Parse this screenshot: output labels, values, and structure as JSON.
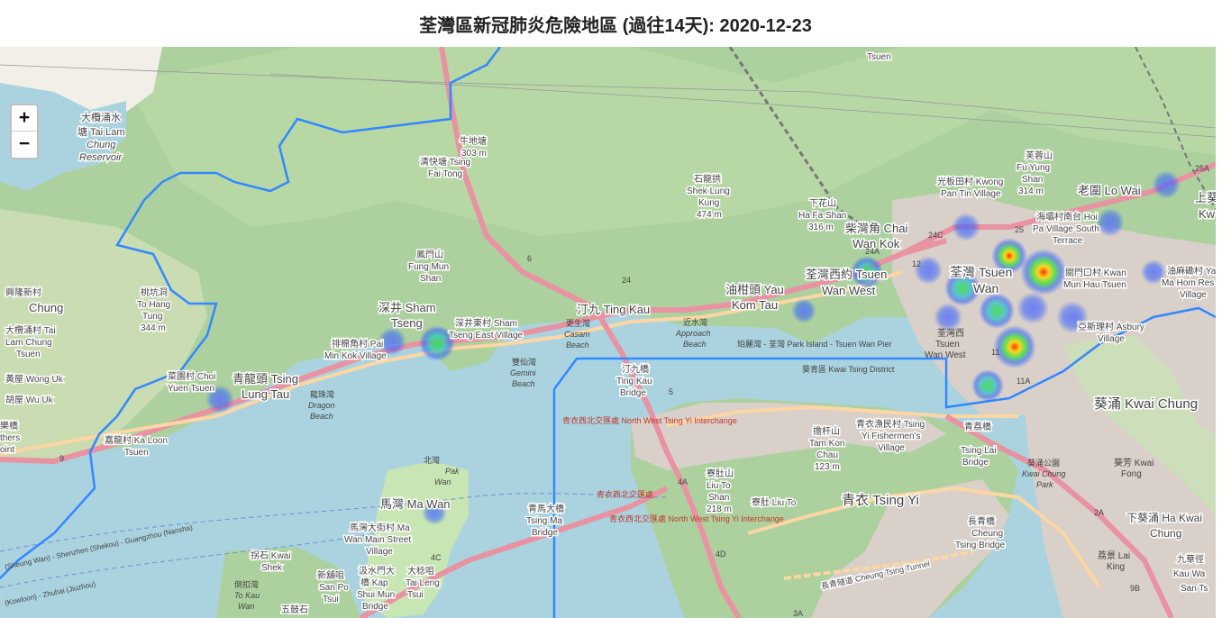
{
  "title": "荃灣區新冠肺炎危險地區 (過往14天): 2020-12-23",
  "zoom": {
    "in_label": "+",
    "out_label": "−"
  },
  "places": [
    {
      "id": "tai-lam-chung-reservoir",
      "l1": "大欖涌水",
      "l2": "塘 Tai Lam",
      "l3": "Chung",
      "l4": "Reservoir"
    },
    {
      "id": "ngau-tam-mei",
      "l1": "牛地塘",
      "l2": "303 m"
    },
    {
      "id": "tsing-fai-tong",
      "l1": "清快塘 Tsing",
      "l2": "Fai Tong"
    },
    {
      "id": "shek-lung-kung",
      "l1": "石龍拱",
      "l2": "Shek Lung",
      "l3": "Kung",
      "l4": "474 m"
    },
    {
      "id": "ha-fa-shan",
      "l1": "下花山",
      "l2": "Ha Fa Shan",
      "l3": "316 m"
    },
    {
      "id": "fung-mun-shan",
      "l1": "鳳門山",
      "l2": "Fung Mun",
      "l3": "Shan"
    },
    {
      "id": "to-hang-tung",
      "l1": "桃坑洞",
      "l2": "To Hang",
      "l3": "Tung",
      "l4": "344 m"
    },
    {
      "id": "tai-lam-chung-tsuen",
      "l1": "大欖涌村 Tai",
      "l2": "Lam Chung",
      "l3": "Tsuen"
    },
    {
      "id": "wong-uk",
      "l1": "黃屋 Wong Uk"
    },
    {
      "id": "wu-uk",
      "l1": "胡屋 Wu Uk"
    },
    {
      "id": "chung",
      "l1": "Chung"
    },
    {
      "id": "sham-tseng",
      "l1": "深井 Sham",
      "l2": "Tseng"
    },
    {
      "id": "sham-tseng-east",
      "l1": "深井東村 Sham",
      "l2": "Tseng East Village"
    },
    {
      "id": "min-kok",
      "l1": "排棉角村 Pai",
      "l2": "Min Kok Village"
    },
    {
      "id": "choi-yuen",
      "l1": "菜園村 Choi",
      "l2": "Yuen Tsuen"
    },
    {
      "id": "tsing-lung-tau",
      "l1": "青龍頭 Tsing",
      "l2": "Lung Tau"
    },
    {
      "id": "dragon-beach",
      "l1": "龍珠灣",
      "l2": "Dragon",
      "l3": "Beach"
    },
    {
      "id": "ka-loon",
      "l1": "嘉龍村 Ka Loon",
      "l2": "Tsuen"
    },
    {
      "id": "ting-kau",
      "l1": "汀九 Ting Kau"
    },
    {
      "id": "casam-beach",
      "l1": "更生灣",
      "l2": "Casam",
      "l3": "Beach"
    },
    {
      "id": "gemini-beach",
      "l1": "雙仙灣",
      "l2": "Gemini",
      "l3": "Beach"
    },
    {
      "id": "approach-beach",
      "l1": "近水灣",
      "l2": "Approach",
      "l3": "Beach"
    },
    {
      "id": "yau-kom-tau",
      "l1": "油柑頭 Yau",
      "l2": "Kom Tau"
    },
    {
      "id": "chai-wan-kok",
      "l1": "柴灣角 Chai",
      "l2": "Wan Kok"
    },
    {
      "id": "tsuen-wan-west",
      "l1": "荃灣西約 Tsuen",
      "l2": "Wan West"
    },
    {
      "id": "tsuen-wan",
      "l1": "荃灣 Tsuen",
      "l2": "Wan"
    },
    {
      "id": "tsuen-wan-west-station",
      "l1": "荃灣西",
      "l2": "Tsuen",
      "l3": "Wan West"
    },
    {
      "id": "kwong-pan-tin",
      "l1": "光板田村 Kwong",
      "l2": "Pan Tin Village"
    },
    {
      "id": "fu-yung-shan",
      "l1": "芙蓉山",
      "l2": "Fu Yung",
      "l3": "Shan",
      "l4": "314 m"
    },
    {
      "id": "lo-wai",
      "l1": "老圍 Lo Wai"
    },
    {
      "id": "pai-village-south",
      "l1": "海壩村南台 Hoi",
      "l2": "Pa Village South",
      "l3": "Terrace"
    },
    {
      "id": "kwan-mun-hau",
      "l1": "關門口村 Kwan",
      "l2": "Mun Hau Tsuen"
    },
    {
      "id": "ma-hom-res",
      "l1": "油麻磡村 Yau",
      "l2": "Ma Hom Res",
      "l3": "Village"
    },
    {
      "id": "asbury",
      "l1": "亞斯理村 Asbury",
      "l2": "Village"
    },
    {
      "id": "kwai-tsing-district",
      "l1": "葵青區 Kwai Tsing District"
    },
    {
      "id": "kwai-chung",
      "l1": "葵涌 Kwai Chung"
    },
    {
      "id": "ting-kau-bridge",
      "l1": "汀九橋",
      "l2": "Ting Kau",
      "l3": "Bridge"
    },
    {
      "id": "tam-kon-chau",
      "l1": "擔杆山",
      "l2": "Tam Kon",
      "l3": "Chau",
      "l4": "123 m"
    },
    {
      "id": "liu-to-shan",
      "l1": "寮肚山",
      "l2": "Liu To",
      "l3": "Shan",
      "l4": "218 m"
    },
    {
      "id": "liu-to",
      "l1": "寮肚 Liu To"
    },
    {
      "id": "tsing-yi",
      "l1": "青衣 Tsing Yi"
    },
    {
      "id": "fishermens",
      "l1": "青衣漁民村 Tsing",
      "l2": "Yi Fishermen's",
      "l3": "Village"
    },
    {
      "id": "tsing-lai-bridge",
      "l1": "青荔橋",
      "l2": "Tsing Lai",
      "l3": "Bridge"
    },
    {
      "id": "kwai-chung-park",
      "l1": "葵涌公園",
      "l2": "Kwai Chung",
      "l3": "Park"
    },
    {
      "id": "kwai-fong",
      "l1": "葵芳 Kwai",
      "l2": "Fong"
    },
    {
      "id": "cheung-tsing-bridge",
      "l1": "長青橋",
      "l2": "Cheung",
      "l3": "Tsing Bridge"
    },
    {
      "id": "ha-kwai-chung",
      "l1": "下葵涌 Ha Kwai",
      "l2": "Chung"
    },
    {
      "id": "lai-king",
      "l1": "荔景 Lai",
      "l2": "King"
    },
    {
      "id": "kau-wa-keng",
      "l1": "九華徑",
      "l2": "Kau Wa",
      "l3": "San Ts"
    },
    {
      "id": "pak-wan",
      "l1": "北灣",
      "l2": "Pak",
      "l3": "Wan"
    },
    {
      "id": "ma-wan",
      "l1": "馬灣 Ma Wan"
    },
    {
      "id": "ma-wan-main-street",
      "l1": "馬灣大街村 Ma",
      "l2": "Wan Main Street",
      "l3": "Village"
    },
    {
      "id": "tsing-ma-bridge",
      "l1": "青馬大橋",
      "l2": "Tsing Ma",
      "l3": "Bridge"
    },
    {
      "id": "kap-shui-mun",
      "l1": "汲水門大",
      "l2": "橋 Kap",
      "l3": "Shui Mun",
      "l4": "Bridge"
    },
    {
      "id": "tai-leng-tsui",
      "l1": "大稔咀",
      "l2": "Tai Leng",
      "l3": "Tsui"
    },
    {
      "id": "pak-kwai-shek",
      "l1": "拐石 Kwai",
      "l2": "Shek"
    },
    {
      "id": "san-po-tsui",
      "l1": "新舖咀",
      "l2": "San Po",
      "l3": "Tsui"
    },
    {
      "id": "to-kau-wan",
      "l1": "倒扣灣",
      "l2": "To Kau",
      "l3": "Wan"
    },
    {
      "id": "ng-kwu-shek",
      "l1": "五鼓石"
    },
    {
      "id": "park-island-pier",
      "l1": "珀麗灣 - 荃灣 Park Island - Tsuen Wan Pier"
    },
    {
      "id": "tsuen-top",
      "l1": "Tsuen"
    },
    {
      "id": "kw-edge",
      "l1": "上葵",
      "l2": "Kw"
    },
    {
      "id": "shek-lei",
      "l1": "興隆新村",
      "l2": "Chung"
    },
    {
      "id": "others-point",
      "l1": "樂橋",
      "l2": "thers",
      "l3": "oint"
    }
  ],
  "road_labels": [
    {
      "id": "nw-tsing-yi-1",
      "text": "青衣西北交匯處 North West Tsing Yi Interchange"
    },
    {
      "id": "nw-tsing-yi-2",
      "text": "青衣西北交匯處"
    },
    {
      "id": "nw-tsing-yi-3",
      "text": "青衣西北交匯處 North West Tsing Yi Interchange"
    },
    {
      "id": "cheung-tsing-tunnel",
      "text": "長青隧道 Cheung Tsing Tunnel"
    },
    {
      "id": "ferry-route-1",
      "text": "(Sheung Wan) - Shenzhen (Shekou) - Guangzhou (Nansha)"
    },
    {
      "id": "ferry-route-2",
      "text": "(Kowloon) - Zhuhai (Jiuzhou)"
    }
  ],
  "route_numbers": [
    "5",
    "6",
    "9",
    "24",
    "24A",
    "24C",
    "25",
    "25A",
    "11",
    "11A",
    "4A",
    "4C",
    "3A",
    "4D",
    "9B",
    "12",
    "2A"
  ],
  "heat_spots": [
    {
      "id": "hs-choi-yuen",
      "level": 0.35
    },
    {
      "id": "hs-pai-min-kok",
      "level": 0.35
    },
    {
      "id": "hs-sham-tseng",
      "level": 0.6
    },
    {
      "id": "hs-yau-kom-tau",
      "level": 0.3
    },
    {
      "id": "hs-tsuen-wan-west",
      "level": 0.55
    },
    {
      "id": "hs-ma-wan",
      "level": 0.3
    },
    {
      "id": "hs-tw-1",
      "level": 0.5
    },
    {
      "id": "hs-tw-2",
      "level": 0.55
    },
    {
      "id": "hs-tw-3",
      "level": 0.75
    },
    {
      "id": "hs-tw-4",
      "level": 0.9
    },
    {
      "id": "hs-tw-5",
      "level": 0.65
    },
    {
      "id": "hs-tw-6",
      "level": 0.8
    },
    {
      "id": "hs-tw-7",
      "level": 0.6
    },
    {
      "id": "hs-tw-8",
      "level": 0.35
    },
    {
      "id": "hs-tw-9",
      "level": 0.3
    },
    {
      "id": "hs-lo-wai",
      "level": 0.35
    },
    {
      "id": "hs-fu-yung",
      "level": 0.35
    },
    {
      "id": "hs-ma-hom",
      "level": 0.35
    }
  ],
  "colors": {
    "sea": "#aad3df",
    "land": "#f2efe9",
    "forest": "#add19e",
    "park": "#c8e6b4",
    "urban": "#d9d0c9",
    "motorway": "#e892a2",
    "primary": "#fcd6a4",
    "boundary": "#3388ff"
  }
}
